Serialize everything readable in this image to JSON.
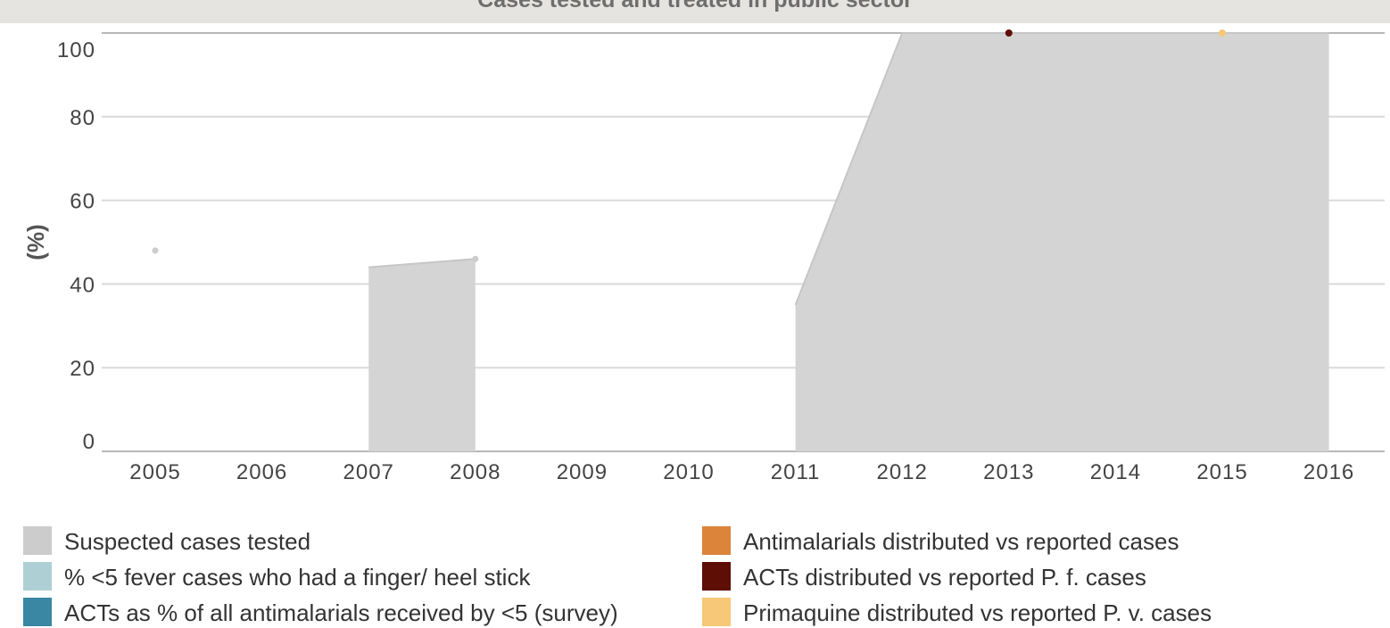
{
  "title": "Cases tested and treated in public sector",
  "chart_data": {
    "type": "area",
    "ylabel": "(%)",
    "xlabel": "",
    "ylim": [
      0,
      100
    ],
    "yticks": [
      0,
      20,
      40,
      60,
      80,
      100
    ],
    "categories": [
      "2005",
      "2006",
      "2007",
      "2008",
      "2009",
      "2010",
      "2011",
      "2012",
      "2013",
      "2014",
      "2015",
      "2016"
    ],
    "grid": true,
    "legend_position": "bottom",
    "series": [
      {
        "name": "Suspected cases tested",
        "color": "#cccccc",
        "kind": "area",
        "values": [
          48,
          null,
          44,
          46,
          null,
          null,
          35,
          100,
          100,
          100,
          100,
          100
        ]
      },
      {
        "name": "% <5 fever cases who had a finger/ heel stick",
        "color": "#aed0d4",
        "kind": "point",
        "values": [
          null,
          null,
          null,
          null,
          null,
          null,
          null,
          null,
          null,
          null,
          null,
          null
        ]
      },
      {
        "name": "ACTs as % of all antimalarials received by <5 (survey)",
        "color": "#3a87a3",
        "kind": "point",
        "values": [
          null,
          null,
          null,
          null,
          null,
          null,
          null,
          null,
          null,
          null,
          null,
          null
        ]
      },
      {
        "name": "Antimalarials distributed vs reported cases",
        "color": "#dc843a",
        "kind": "point",
        "values": [
          null,
          null,
          null,
          null,
          null,
          null,
          null,
          null,
          null,
          null,
          null,
          null
        ]
      },
      {
        "name": "ACTs distributed vs reported P. f. cases",
        "color": "#5e0e04",
        "kind": "point",
        "values": [
          null,
          null,
          null,
          null,
          null,
          null,
          null,
          null,
          100,
          null,
          null,
          null
        ]
      },
      {
        "name": "Primaquine distributed vs reported P. v. cases",
        "color": "#f6c877",
        "kind": "point",
        "values": [
          null,
          null,
          null,
          null,
          null,
          null,
          null,
          null,
          null,
          null,
          100,
          null
        ]
      }
    ]
  }
}
